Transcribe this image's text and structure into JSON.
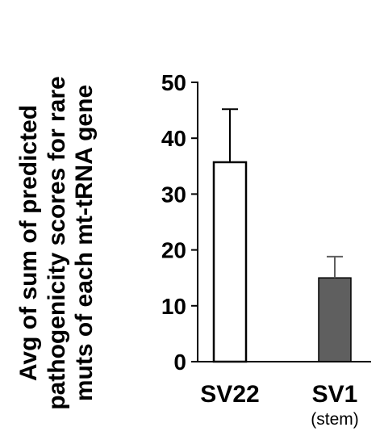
{
  "chart_data": {
    "type": "bar",
    "ylabel_lines": [
      "Avg of sum of predicted",
      "pathogenicity scores for rare",
      "muts of each mt-tRNA gene"
    ],
    "categories": [
      {
        "label": "SV22",
        "sublabel": ""
      },
      {
        "label": "SV1",
        "sublabel": "(stem)"
      }
    ],
    "values": [
      35.7,
      15.0
    ],
    "errors": [
      9.5,
      3.8
    ],
    "bar_fills": [
      "#ffffff",
      "#5f5f5f"
    ],
    "ylim": [
      0,
      50
    ],
    "yticks": [
      0,
      10,
      20,
      30,
      40,
      50
    ],
    "grid": false,
    "legend": "none"
  }
}
